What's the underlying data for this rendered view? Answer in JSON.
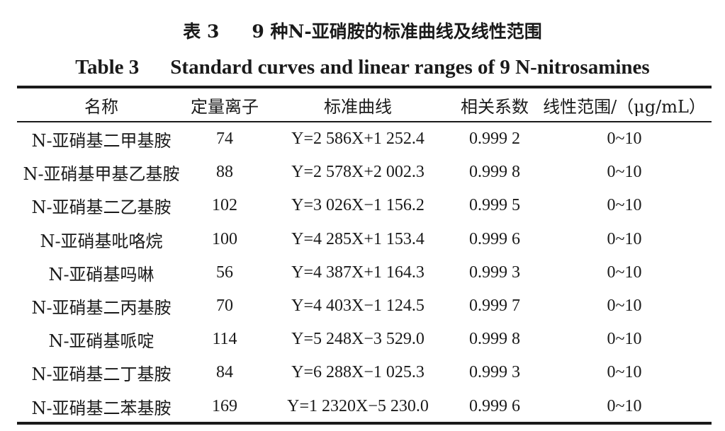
{
  "caption": {
    "cn_number": "表 3",
    "cn_title": "9 种N-亚硝胺的标准曲线及线性范围",
    "en_number": "Table 3",
    "en_title": "Standard curves and linear ranges of 9 N-nitrosamines"
  },
  "table": {
    "headers": [
      "名称",
      "定量离子",
      "标准曲线",
      "相关系数",
      "线性范围/（μg/mL）"
    ],
    "rows": [
      {
        "name": "N-亚硝基二甲基胺",
        "ion": "74",
        "curve": "Y=2 586X+1 252.4",
        "r": "0.999 2",
        "range": "0~10"
      },
      {
        "name": "N-亚硝基甲基乙基胺",
        "ion": "88",
        "curve": "Y=2 578X+2 002.3",
        "r": "0.999 8",
        "range": "0~10"
      },
      {
        "name": "N-亚硝基二乙基胺",
        "ion": "102",
        "curve": "Y=3 026X−1 156.2",
        "r": "0.999 5",
        "range": "0~10"
      },
      {
        "name": "N-亚硝基吡咯烷",
        "ion": "100",
        "curve": "Y=4 285X+1 153.4",
        "r": "0.999 6",
        "range": "0~10"
      },
      {
        "name": "N-亚硝基吗啉",
        "ion": "56",
        "curve": "Y=4 387X+1 164.3",
        "r": "0.999 3",
        "range": "0~10"
      },
      {
        "name": "N-亚硝基二丙基胺",
        "ion": "70",
        "curve": "Y=4 403X−1 124.5",
        "r": "0.999 7",
        "range": "0~10"
      },
      {
        "name": "N-亚硝基哌啶",
        "ion": "114",
        "curve": "Y=5 248X−3 529.0",
        "r": "0.999 8",
        "range": "0~10"
      },
      {
        "name": "N-亚硝基二丁基胺",
        "ion": "84",
        "curve": "Y=6 288X−1 025.3",
        "r": "0.999 3",
        "range": "0~10"
      },
      {
        "name": "N-亚硝基二苯基胺",
        "ion": "169",
        "curve": "Y=1 2320X−5 230.0",
        "r": "0.999 6",
        "range": "0~10"
      }
    ]
  }
}
